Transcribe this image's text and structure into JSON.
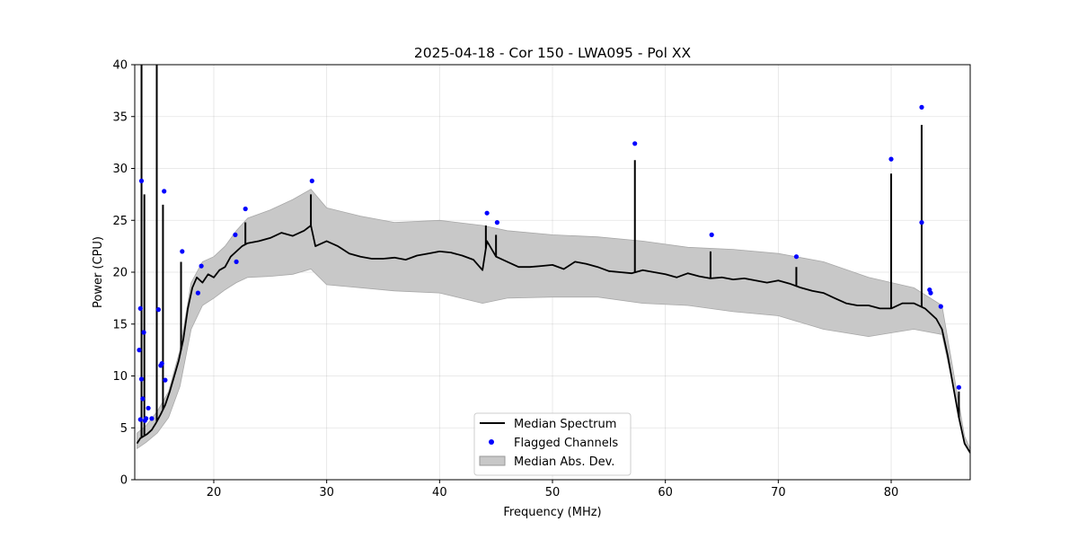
{
  "chart_data": {
    "type": "line",
    "title": "2025-04-18 - Cor 150 - LWA095 - Pol XX",
    "xlabel": "Frequency (MHz)",
    "ylabel": "Power (CPU)",
    "xlim": [
      13,
      87
    ],
    "ylim": [
      0,
      40
    ],
    "xticks": [
      20,
      30,
      40,
      50,
      60,
      70,
      80
    ],
    "xtick_labels": [
      "20",
      "30",
      "40",
      "50",
      "60",
      "70",
      "80"
    ],
    "yticks": [
      0,
      5,
      10,
      15,
      20,
      25,
      30,
      35,
      40
    ],
    "ytick_labels": [
      "0",
      "5",
      "10",
      "15",
      "20",
      "25",
      "30",
      "35",
      "40"
    ],
    "grid": true,
    "legend_position": "bottom-center",
    "legend": [
      "Median Spectrum",
      "Flagged Channels",
      "Median Abs. Dev."
    ],
    "series": [
      {
        "name": "Median Spectrum",
        "style": "line",
        "color": "#000000",
        "x": [
          13.2,
          13.5,
          13.8,
          14.1,
          14.5,
          14.9,
          15.3,
          15.7,
          16.1,
          16.5,
          16.9,
          17.3,
          17.7,
          18.1,
          18.5,
          19.0,
          19.5,
          20.0,
          20.5,
          21.0,
          21.5,
          22.0,
          22.5,
          23.0,
          24.0,
          25.0,
          26.0,
          27.0,
          28.0,
          28.6,
          29.0,
          30.0,
          31.0,
          32.0,
          33.0,
          34.0,
          35.0,
          36.0,
          37.0,
          38.0,
          39.0,
          40.0,
          41.0,
          42.0,
          43.0,
          43.8,
          44.2,
          45.0,
          46.0,
          47.0,
          48.0,
          49.0,
          50.0,
          51.0,
          52.0,
          53.0,
          54.0,
          55.0,
          56.0,
          57.0,
          58.0,
          59.0,
          60.0,
          61.0,
          62.0,
          63.0,
          64.0,
          65.0,
          66.0,
          67.0,
          68.0,
          69.0,
          70.0,
          71.0,
          72.0,
          73.0,
          74.0,
          75.0,
          76.0,
          77.0,
          78.0,
          79.0,
          80.0,
          81.0,
          82.0,
          83.0,
          83.5,
          84.0,
          84.5,
          85.0,
          85.5,
          86.0,
          86.5,
          87.0
        ],
        "y": [
          3.5,
          4.0,
          4.2,
          4.4,
          4.8,
          5.5,
          6.3,
          7.2,
          8.5,
          10.0,
          11.5,
          13.5,
          16.5,
          18.5,
          19.5,
          19.0,
          19.8,
          19.5,
          20.2,
          20.5,
          21.5,
          22.0,
          22.5,
          22.8,
          23.0,
          23.3,
          23.8,
          23.5,
          24.0,
          24.5,
          22.5,
          23.0,
          22.5,
          21.8,
          21.5,
          21.3,
          21.3,
          21.4,
          21.2,
          21.6,
          21.8,
          22.0,
          21.9,
          21.6,
          21.2,
          20.2,
          23.0,
          21.5,
          21.0,
          20.5,
          20.5,
          20.6,
          20.7,
          20.3,
          21.0,
          20.8,
          20.5,
          20.1,
          20.0,
          19.9,
          20.2,
          20.0,
          19.8,
          19.5,
          19.9,
          19.6,
          19.4,
          19.5,
          19.3,
          19.4,
          19.2,
          19.0,
          19.2,
          18.9,
          18.5,
          18.2,
          18.0,
          17.5,
          17.0,
          16.8,
          16.8,
          16.5,
          16.5,
          17.0,
          17.0,
          16.5,
          16.0,
          15.5,
          14.5,
          12.0,
          9.0,
          6.0,
          3.5,
          2.6
        ],
        "spikes": [
          {
            "x": 13.6,
            "y": 40.0
          },
          {
            "x": 13.85,
            "y": 27.5
          },
          {
            "x": 14.95,
            "y": 40.0
          },
          {
            "x": 15.5,
            "y": 26.5
          },
          {
            "x": 17.1,
            "y": 21.0
          },
          {
            "x": 22.8,
            "y": 24.8
          },
          {
            "x": 28.6,
            "y": 27.5
          },
          {
            "x": 44.1,
            "y": 24.5
          },
          {
            "x": 45.0,
            "y": 23.6
          },
          {
            "x": 57.3,
            "y": 30.8
          },
          {
            "x": 64.0,
            "y": 22.0
          },
          {
            "x": 71.6,
            "y": 20.5
          },
          {
            "x": 80.0,
            "y": 29.5
          },
          {
            "x": 82.7,
            "y": 34.2
          },
          {
            "x": 86.0,
            "y": 8.5
          }
        ]
      },
      {
        "name": "Flagged Channels",
        "style": "scatter",
        "color": "#0000ff",
        "x": [
          13.4,
          13.5,
          13.6,
          13.7,
          13.8,
          13.9,
          14.0,
          13.6,
          13.5,
          14.2,
          14.5,
          15.1,
          15.3,
          15.4,
          15.6,
          15.7,
          17.2,
          18.6,
          18.9,
          21.9,
          22.0,
          22.8,
          28.7,
          44.2,
          45.1,
          57.3,
          64.1,
          71.6,
          80.0,
          82.7,
          82.7,
          83.4,
          83.5,
          84.4,
          86.0
        ],
        "y": [
          12.5,
          16.5,
          28.8,
          7.8,
          14.2,
          5.7,
          5.9,
          9.7,
          5.8,
          6.9,
          5.9,
          16.4,
          11.0,
          11.2,
          27.8,
          9.6,
          22.0,
          18.0,
          20.6,
          23.6,
          21.0,
          26.1,
          28.8,
          25.7,
          24.8,
          32.4,
          23.6,
          21.5,
          30.9,
          35.9,
          24.8,
          18.3,
          18.0,
          16.7,
          8.9
        ]
      },
      {
        "name": "Median Abs. Dev.",
        "style": "band",
        "color": "#c8c8c8",
        "x": [
          13.2,
          14.0,
          15.0,
          16.0,
          17.0,
          18.0,
          19.0,
          20.0,
          21.0,
          22.0,
          23.0,
          25.0,
          27.0,
          28.6,
          30.0,
          33.0,
          36.0,
          40.0,
          43.8,
          46.0,
          50.0,
          54.0,
          58.0,
          62.0,
          66.0,
          70.0,
          74.0,
          78.0,
          82.0,
          84.5,
          85.5,
          86.5,
          87.0
        ],
        "lower": [
          3.0,
          3.6,
          4.5,
          6.0,
          9.0,
          14.5,
          16.8,
          17.5,
          18.3,
          19.0,
          19.5,
          19.6,
          19.8,
          20.3,
          18.8,
          18.5,
          18.2,
          18.0,
          17.0,
          17.5,
          17.6,
          17.6,
          17.0,
          16.8,
          16.2,
          15.8,
          14.5,
          13.8,
          14.5,
          14.0,
          9.0,
          3.4,
          2.5
        ],
        "upper": [
          4.5,
          5.2,
          6.6,
          8.5,
          12.5,
          19.0,
          21.0,
          21.5,
          22.5,
          24.0,
          25.2,
          26.0,
          27.0,
          28.0,
          26.2,
          25.4,
          24.8,
          25.0,
          24.5,
          24.0,
          23.6,
          23.4,
          23.0,
          22.4,
          22.2,
          21.8,
          21.0,
          19.5,
          18.5,
          16.8,
          10.5,
          4.2,
          3.0
        ]
      }
    ]
  }
}
